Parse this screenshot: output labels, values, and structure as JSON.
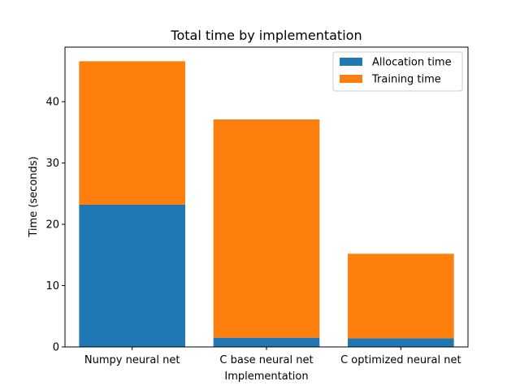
{
  "chart_data": {
    "type": "bar",
    "stacked": true,
    "title": "Total time by implementation",
    "xlabel": "Implementation",
    "ylabel": "Time (seconds)",
    "categories": [
      "Numpy neural net",
      "C base neural net",
      "C optimized neural net"
    ],
    "series": [
      {
        "name": "Allocation time",
        "color": "#1f77b4",
        "values": [
          23.2,
          1.5,
          1.4
        ]
      },
      {
        "name": "Training time",
        "color": "#ff7f0e",
        "values": [
          23.4,
          35.6,
          13.8
        ]
      }
    ],
    "ylim": [
      0,
      48.9
    ],
    "yticks": [
      0,
      10,
      20,
      30,
      40
    ],
    "grid": false,
    "legend_position": "top-right"
  }
}
